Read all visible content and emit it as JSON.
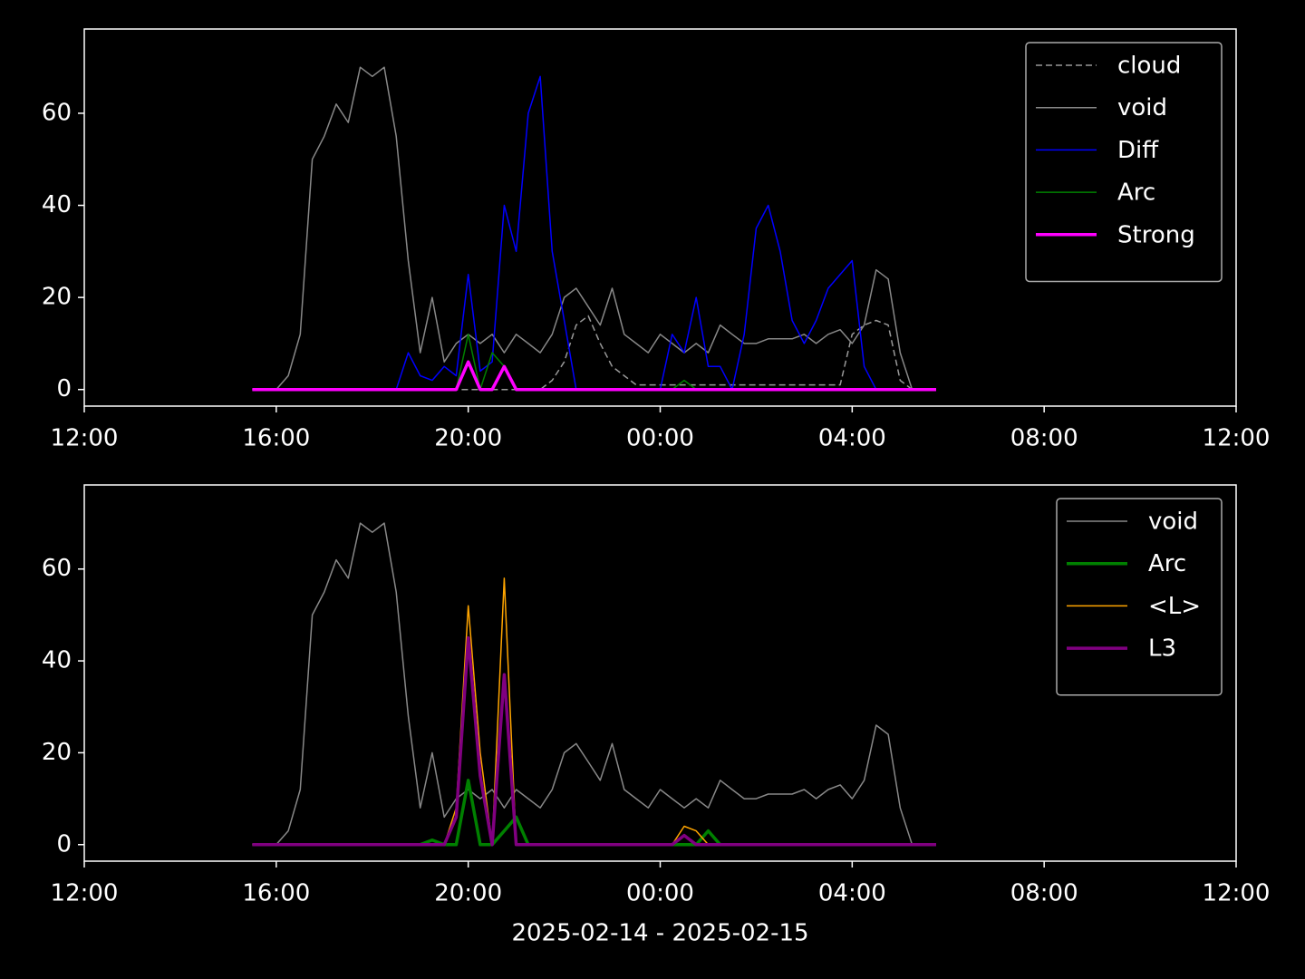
{
  "chart_data": [
    {
      "type": "line",
      "xlim": [
        12,
        36
      ],
      "xticks": [
        {
          "value": 12,
          "label": "12:00"
        },
        {
          "value": 16,
          "label": "16:00"
        },
        {
          "value": 20,
          "label": "20:00"
        },
        {
          "value": 24,
          "label": "00:00"
        },
        {
          "value": 28,
          "label": "04:00"
        },
        {
          "value": 32,
          "label": "08:00"
        },
        {
          "value": 36,
          "label": "12:00"
        }
      ],
      "ylim": [
        -3.6,
        78.3
      ],
      "yticks": [
        0,
        20,
        40,
        60
      ],
      "legend": "upper right",
      "x": [
        15.5,
        15.75,
        16,
        16.25,
        16.5,
        16.75,
        17,
        17.25,
        17.5,
        17.75,
        18,
        18.25,
        18.5,
        18.75,
        19,
        19.25,
        19.5,
        19.75,
        20,
        20.25,
        20.5,
        20.75,
        21,
        21.25,
        21.5,
        21.75,
        22,
        22.25,
        22.5,
        22.75,
        23,
        23.25,
        23.5,
        23.75,
        24,
        24.25,
        24.5,
        24.75,
        25,
        25.25,
        25.5,
        25.75,
        26,
        26.25,
        26.5,
        26.75,
        27,
        27.25,
        27.5,
        27.75,
        28,
        28.25,
        28.5,
        28.75,
        29,
        29.25,
        29.5,
        29.75
      ],
      "series": [
        {
          "name": "cloud",
          "color": "#999999",
          "linestyle": "dashed",
          "linewidth": 1.5,
          "values": [
            0,
            0,
            0,
            0,
            0,
            0,
            0,
            0,
            0,
            0,
            0,
            0,
            0,
            0,
            0,
            0,
            0,
            0,
            0,
            0,
            0,
            0,
            0,
            0,
            0,
            2,
            6,
            14,
            16,
            10,
            5,
            3,
            1,
            1,
            1,
            1,
            1,
            1,
            1,
            1,
            1,
            1,
            1,
            1,
            1,
            1,
            1,
            1,
            1,
            1,
            12,
            14,
            15,
            14,
            2,
            0,
            0,
            0
          ]
        },
        {
          "name": "void",
          "color": "#888888",
          "linestyle": "solid",
          "linewidth": 1.5,
          "values": [
            0,
            0,
            0,
            3,
            12,
            50,
            55,
            62,
            58,
            70,
            68,
            70,
            55,
            28,
            8,
            20,
            6,
            10,
            12,
            10,
            12,
            8,
            12,
            10,
            8,
            12,
            20,
            22,
            18,
            14,
            22,
            12,
            10,
            8,
            12,
            10,
            8,
            10,
            8,
            14,
            12,
            10,
            10,
            11,
            11,
            11,
            12,
            10,
            12,
            13,
            10,
            14,
            26,
            24,
            8,
            0,
            0,
            0
          ]
        },
        {
          "name": "Diff",
          "color": "#0000ff",
          "linestyle": "solid",
          "linewidth": 1.5,
          "values": [
            0,
            0,
            0,
            0,
            0,
            0,
            0,
            0,
            0,
            0,
            0,
            0,
            0,
            8,
            3,
            2,
            5,
            3,
            25,
            4,
            6,
            40,
            30,
            60,
            68,
            30,
            15,
            0,
            0,
            0,
            0,
            0,
            0,
            0,
            0,
            12,
            8,
            20,
            5,
            5,
            0,
            12,
            35,
            40,
            30,
            15,
            10,
            15,
            22,
            25,
            28,
            5,
            0,
            0,
            0,
            0,
            0,
            0
          ]
        },
        {
          "name": "Arc",
          "color": "#008000",
          "linestyle": "solid",
          "linewidth": 1.5,
          "values": [
            0,
            0,
            0,
            0,
            0,
            0,
            0,
            0,
            0,
            0,
            0,
            0,
            0,
            0,
            0,
            0,
            0,
            0,
            12,
            0,
            8,
            5,
            0,
            0,
            0,
            0,
            0,
            0,
            0,
            0,
            0,
            0,
            0,
            0,
            0,
            0,
            2,
            0,
            0,
            0,
            0,
            0,
            0,
            0,
            0,
            0,
            0,
            0,
            0,
            0,
            0,
            0,
            0,
            0,
            0,
            0,
            0,
            0
          ]
        },
        {
          "name": "Strong",
          "color": "#ff00ff",
          "linestyle": "solid",
          "linewidth": 3.5,
          "values": [
            0,
            0,
            0,
            0,
            0,
            0,
            0,
            0,
            0,
            0,
            0,
            0,
            0,
            0,
            0,
            0,
            0,
            0,
            6,
            0,
            0,
            5,
            0,
            0,
            0,
            0,
            0,
            0,
            0,
            0,
            0,
            0,
            0,
            0,
            0,
            0,
            0,
            0,
            0,
            0,
            0,
            0,
            0,
            0,
            0,
            0,
            0,
            0,
            0,
            0,
            0,
            0,
            0,
            0,
            0,
            0,
            0,
            0
          ]
        }
      ]
    },
    {
      "type": "line",
      "xlabel": "2025-02-14 - 2025-02-15",
      "xlim": [
        12,
        36
      ],
      "xticks": [
        {
          "value": 12,
          "label": "12:00"
        },
        {
          "value": 16,
          "label": "16:00"
        },
        {
          "value": 20,
          "label": "20:00"
        },
        {
          "value": 24,
          "label": "00:00"
        },
        {
          "value": 28,
          "label": "04:00"
        },
        {
          "value": 32,
          "label": "08:00"
        },
        {
          "value": 36,
          "label": "12:00"
        }
      ],
      "ylim": [
        -3.6,
        78.3
      ],
      "yticks": [
        0,
        20,
        40,
        60
      ],
      "legend": "upper right",
      "x": [
        15.5,
        15.75,
        16,
        16.25,
        16.5,
        16.75,
        17,
        17.25,
        17.5,
        17.75,
        18,
        18.25,
        18.5,
        18.75,
        19,
        19.25,
        19.5,
        19.75,
        20,
        20.25,
        20.5,
        20.75,
        21,
        21.25,
        21.5,
        21.75,
        22,
        22.25,
        22.5,
        22.75,
        23,
        23.25,
        23.5,
        23.75,
        24,
        24.25,
        24.5,
        24.75,
        25,
        25.25,
        25.5,
        25.75,
        26,
        26.25,
        26.5,
        26.75,
        27,
        27.25,
        27.5,
        27.75,
        28,
        28.25,
        28.5,
        28.75,
        29,
        29.25,
        29.5,
        29.75
      ],
      "series": [
        {
          "name": "void",
          "color": "#888888",
          "linestyle": "solid",
          "linewidth": 1.5,
          "values": [
            0,
            0,
            0,
            3,
            12,
            50,
            55,
            62,
            58,
            70,
            68,
            70,
            55,
            28,
            8,
            20,
            6,
            10,
            12,
            10,
            12,
            8,
            12,
            10,
            8,
            12,
            20,
            22,
            18,
            14,
            22,
            12,
            10,
            8,
            12,
            10,
            8,
            10,
            8,
            14,
            12,
            10,
            10,
            11,
            11,
            11,
            12,
            10,
            12,
            13,
            10,
            14,
            26,
            24,
            8,
            0,
            0,
            0
          ]
        },
        {
          "name": "Arc",
          "color": "#008000",
          "linestyle": "solid",
          "linewidth": 3.5,
          "values": [
            0,
            0,
            0,
            0,
            0,
            0,
            0,
            0,
            0,
            0,
            0,
            0,
            0,
            0,
            0,
            1,
            0,
            0,
            14,
            0,
            0,
            3,
            6,
            0,
            0,
            0,
            0,
            0,
            0,
            0,
            0,
            0,
            0,
            0,
            0,
            0,
            0,
            0,
            3,
            0,
            0,
            0,
            0,
            0,
            0,
            0,
            0,
            0,
            0,
            0,
            0,
            0,
            0,
            0,
            0,
            0,
            0,
            0
          ]
        },
        {
          "name": "<L>",
          "color": "#ffa500",
          "linestyle": "solid",
          "linewidth": 1.5,
          "values": [
            0,
            0,
            0,
            0,
            0,
            0,
            0,
            0,
            0,
            0,
            0,
            0,
            0,
            0,
            0,
            0,
            0,
            8,
            52,
            20,
            0,
            58,
            0,
            0,
            0,
            0,
            0,
            0,
            0,
            0,
            0,
            0,
            0,
            0,
            0,
            0,
            4,
            3,
            0,
            0,
            0,
            0,
            0,
            0,
            0,
            0,
            0,
            0,
            0,
            0,
            0,
            0,
            0,
            0,
            0,
            0,
            0,
            0
          ]
        },
        {
          "name": "L3",
          "color": "#800080",
          "linestyle": "solid",
          "linewidth": 3.5,
          "values": [
            0,
            0,
            0,
            0,
            0,
            0,
            0,
            0,
            0,
            0,
            0,
            0,
            0,
            0,
            0,
            0,
            0,
            6,
            45,
            15,
            0,
            37,
            0,
            0,
            0,
            0,
            0,
            0,
            0,
            0,
            0,
            0,
            0,
            0,
            0,
            0,
            2,
            0,
            0,
            0,
            0,
            0,
            0,
            0,
            0,
            0,
            0,
            0,
            0,
            0,
            0,
            0,
            0,
            0,
            0,
            0,
            0,
            0
          ]
        }
      ]
    }
  ]
}
